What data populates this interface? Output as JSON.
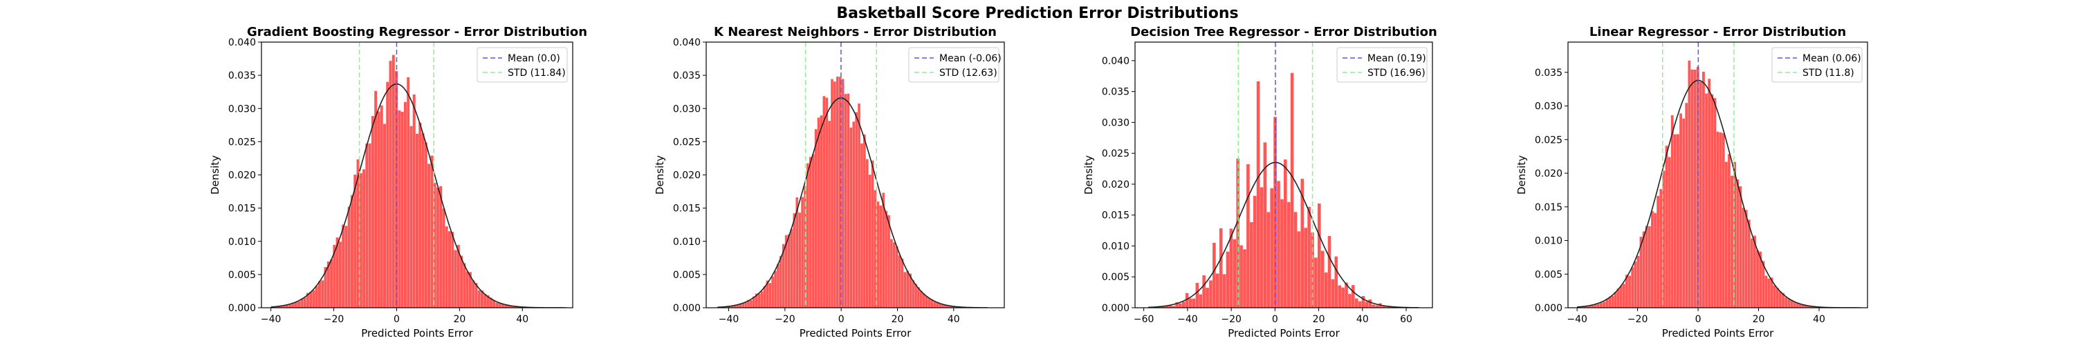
{
  "figure": {
    "suptitle": "Basketball Score Prediction Error Distributions"
  },
  "colors": {
    "bars": "#ff4d4d",
    "mean_line": "#5555ff",
    "std_line": "#90ee90",
    "curve": "#222222"
  },
  "chart_data": [
    {
      "type": "bar",
      "title": "Gradient Boosting Regressor - Error Distribution",
      "xlabel": "Predicted Points Error",
      "ylabel": "Density",
      "xlim": [
        -43,
        56
      ],
      "ylim": [
        0,
        0.04
      ],
      "xticks": [
        "-40",
        "-20",
        "0",
        "20",
        "40"
      ],
      "xtick_values": [
        -40,
        -20,
        0,
        20,
        40
      ],
      "yticks": [
        "0.000",
        "0.005",
        "0.010",
        "0.015",
        "0.020",
        "0.025",
        "0.030",
        "0.035",
        "0.040"
      ],
      "ytick_values": [
        0,
        0.005,
        0.01,
        0.015,
        0.02,
        0.025,
        0.03,
        0.035,
        0.04
      ],
      "mean": 0.0,
      "std": 11.84,
      "hist_range": [
        -40,
        54
      ],
      "bins": 100,
      "legend": [
        "Mean (0.0)",
        "STD (11.84)"
      ],
      "legend_position": "upper right",
      "grid": false
    },
    {
      "type": "bar",
      "title": "K Nearest Neighbors - Error Distribution",
      "xlabel": "Predicted Points Error",
      "ylabel": "Density",
      "xlim": [
        -48,
        58
      ],
      "ylim": [
        0,
        0.04
      ],
      "xticks": [
        "-40",
        "-20",
        "0",
        "20",
        "40"
      ],
      "xtick_values": [
        -40,
        -20,
        0,
        20,
        40
      ],
      "yticks": [
        "0.000",
        "0.005",
        "0.010",
        "0.015",
        "0.020",
        "0.025",
        "0.030",
        "0.035",
        "0.040"
      ],
      "ytick_values": [
        0,
        0.005,
        0.01,
        0.015,
        0.02,
        0.025,
        0.03,
        0.035,
        0.04
      ],
      "mean": -0.06,
      "std": 12.63,
      "hist_range": [
        -44,
        52
      ],
      "bins": 100,
      "legend": [
        "Mean (-0.06)",
        "STD (12.63)"
      ],
      "legend_position": "upper right",
      "grid": false
    },
    {
      "type": "bar",
      "title": "Decision Tree Regressor - Error Distribution",
      "xlabel": "Predicted Points Error",
      "ylabel": "Density",
      "xlim": [
        -64,
        72
      ],
      "ylim": [
        0,
        0.043
      ],
      "xticks": [
        "-60",
        "-40",
        "-20",
        "0",
        "20",
        "40",
        "60"
      ],
      "xtick_values": [
        -60,
        -40,
        -20,
        0,
        20,
        40,
        60
      ],
      "yticks": [
        "0.000",
        "0.005",
        "0.010",
        "0.015",
        "0.020",
        "0.025",
        "0.030",
        "0.035",
        "0.040"
      ],
      "ytick_values": [
        0,
        0.005,
        0.01,
        0.015,
        0.02,
        0.025,
        0.03,
        0.035,
        0.04
      ],
      "mean": 0.19,
      "std": 16.96,
      "hist_range": [
        -58,
        66
      ],
      "bins": 80,
      "legend": [
        "Mean (0.19)",
        "STD (16.96)"
      ],
      "legend_position": "upper right",
      "grid": false
    },
    {
      "type": "bar",
      "title": "Linear Regressor - Error Distribution",
      "xlabel": "Predicted Points Error",
      "ylabel": "Density",
      "xlim": [
        -43,
        56
      ],
      "ylim": [
        0,
        0.0395
      ],
      "xticks": [
        "-40",
        "-20",
        "0",
        "20",
        "40"
      ],
      "xtick_values": [
        -40,
        -20,
        0,
        20,
        40
      ],
      "yticks": [
        "0.000",
        "0.005",
        "0.010",
        "0.015",
        "0.020",
        "0.025",
        "0.030",
        "0.035"
      ],
      "ytick_values": [
        0,
        0.005,
        0.01,
        0.015,
        0.02,
        0.025,
        0.03,
        0.035
      ],
      "mean": 0.06,
      "std": 11.8,
      "hist_range": [
        -40,
        54
      ],
      "bins": 100,
      "legend": [
        "Mean (0.06)",
        "STD (11.8)"
      ],
      "legend_position": "upper right",
      "grid": false
    }
  ]
}
